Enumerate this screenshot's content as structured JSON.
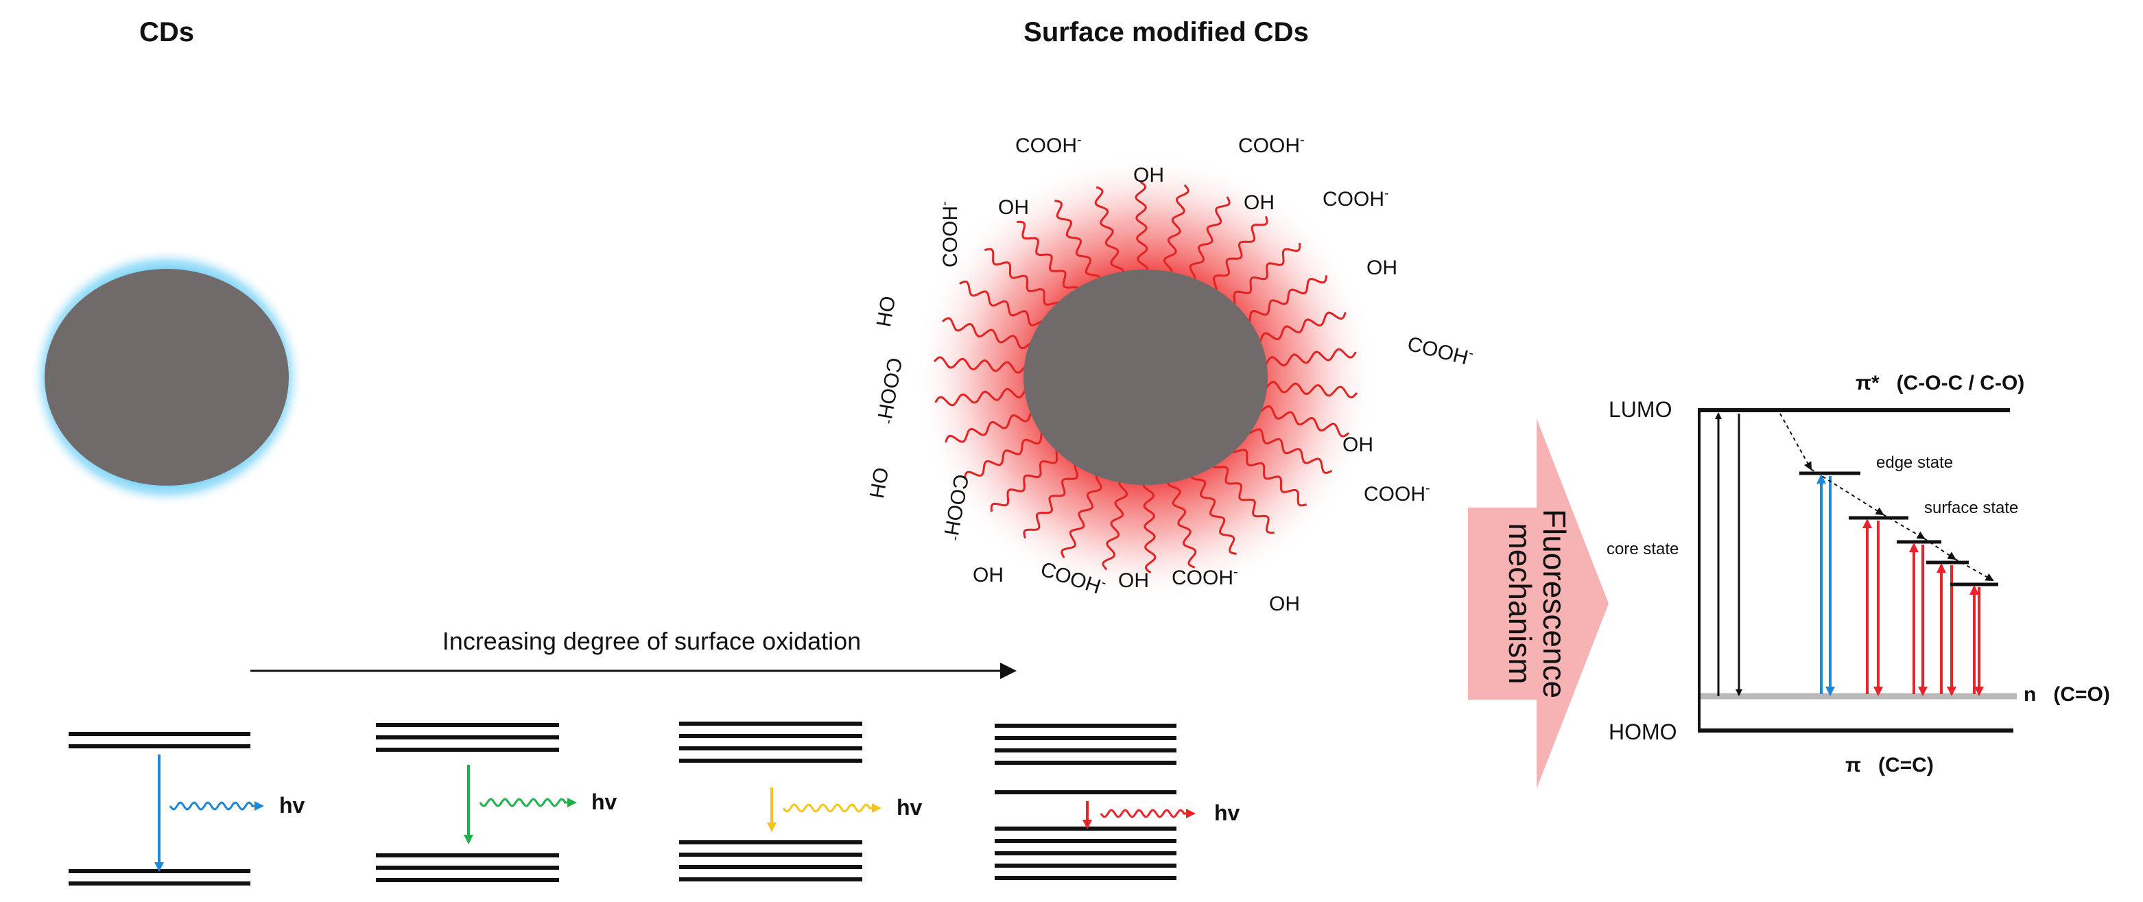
{
  "titles": {
    "left": "CDs",
    "right": "Surface modified CDs"
  },
  "oxidation": {
    "arrow_label": "Increasing degree of surface oxidation",
    "emission_label": "hv",
    "emission_colors": [
      "#1e88d6",
      "#1db24a",
      "#f5c518",
      "#e8232a"
    ]
  },
  "surface_groups": {
    "oh": "OH",
    "cooh": "COOH",
    "charge": "-"
  },
  "mechanism": {
    "arrow_text_line1": "Fluorescence",
    "arrow_text_line2": "mechanism"
  },
  "energy_diagram": {
    "lumo": "LUMO",
    "homo": "HOMO",
    "pi_star": "π*   (C-O-C / C-O)",
    "pi": "π   (C=C)",
    "n_level": "n   (C=O)",
    "core_state": "core state",
    "edge_state": "edge state",
    "surface_state": "surface state"
  },
  "colors": {
    "core": "#706b6a",
    "blue_glow": "#5cc8f5",
    "red_glow": "#f03a3a",
    "ligand": "#e02424",
    "mechanism_arrow": "#f7b3b3"
  }
}
